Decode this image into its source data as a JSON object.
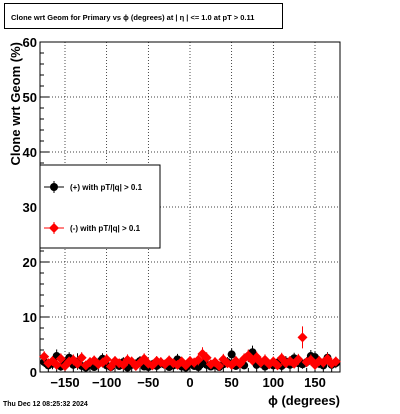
{
  "chart_data": {
    "type": "scatter",
    "title": "Clone wrt Geom for Primary vs ϕ (degrees) at | η | <= 1.0 at pT > 0.11",
    "xlabel": "ϕ (degrees)",
    "ylabel": "Clone wrt Geom (%)",
    "xlim": [
      -180,
      180
    ],
    "ylim": [
      0,
      60
    ],
    "x_ticks": [
      -150,
      -100,
      -50,
      0,
      50,
      100,
      150
    ],
    "x_tick_labels": [
      "−150",
      "−100",
      "−50",
      "0",
      "50",
      "100",
      "150"
    ],
    "y_ticks": [
      0,
      10,
      20,
      30,
      40,
      50,
      60
    ],
    "y_tick_labels": [
      "0",
      "10",
      "20",
      "30",
      "40",
      "50",
      "60"
    ],
    "grid": true,
    "legend_placement": "middle-left",
    "series": [
      {
        "name": "(+) with pT/|q| > 0.1",
        "color": "#000000",
        "marker": "circle",
        "points": [
          {
            "x": -175,
            "y": 1.8,
            "err": 0.9
          },
          {
            "x": -170,
            "y": 1.2,
            "err": 0.7
          },
          {
            "x": -165,
            "y": 1.5,
            "err": 1.0
          },
          {
            "x": -160,
            "y": 2.9,
            "err": 1.2
          },
          {
            "x": -155,
            "y": 1.0,
            "err": 0.8
          },
          {
            "x": -150,
            "y": 1.6,
            "err": 0.9
          },
          {
            "x": -145,
            "y": 2.6,
            "err": 1.0
          },
          {
            "x": -140,
            "y": 1.3,
            "err": 0.8
          },
          {
            "x": -135,
            "y": 1.9,
            "err": 1.5
          },
          {
            "x": -130,
            "y": 1.1,
            "err": 0.7
          },
          {
            "x": -125,
            "y": 0.8,
            "err": 0.6
          },
          {
            "x": -120,
            "y": 1.4,
            "err": 0.8
          },
          {
            "x": -115,
            "y": 0.9,
            "err": 0.7
          },
          {
            "x": -110,
            "y": 1.7,
            "err": 0.9
          },
          {
            "x": -105,
            "y": 2.4,
            "err": 1.0
          },
          {
            "x": -100,
            "y": 1.2,
            "err": 0.7
          },
          {
            "x": -95,
            "y": 0.9,
            "err": 0.6
          },
          {
            "x": -90,
            "y": 1.6,
            "err": 0.8
          },
          {
            "x": -85,
            "y": 1.1,
            "err": 0.7
          },
          {
            "x": -80,
            "y": 1.8,
            "err": 0.9
          },
          {
            "x": -75,
            "y": 0.8,
            "err": 0.6
          },
          {
            "x": -70,
            "y": 1.3,
            "err": 0.8
          },
          {
            "x": -65,
            "y": 1.5,
            "err": 0.8
          },
          {
            "x": -60,
            "y": 2.0,
            "err": 0.9
          },
          {
            "x": -55,
            "y": 1.0,
            "err": 0.7
          },
          {
            "x": -50,
            "y": 0.9,
            "err": 0.6
          },
          {
            "x": -45,
            "y": 1.4,
            "err": 0.8
          },
          {
            "x": -40,
            "y": 1.1,
            "err": 0.7
          },
          {
            "x": -35,
            "y": 1.6,
            "err": 0.9
          },
          {
            "x": -30,
            "y": 1.3,
            "err": 0.8
          },
          {
            "x": -25,
            "y": 0.9,
            "err": 0.6
          },
          {
            "x": -20,
            "y": 1.2,
            "err": 0.7
          },
          {
            "x": -15,
            "y": 2.3,
            "err": 1.0
          },
          {
            "x": -10,
            "y": 1.0,
            "err": 0.7
          },
          {
            "x": -5,
            "y": 0.8,
            "err": 0.6
          },
          {
            "x": 0,
            "y": 1.5,
            "err": 0.8
          },
          {
            "x": 5,
            "y": 1.1,
            "err": 0.7
          },
          {
            "x": 10,
            "y": 0.9,
            "err": 0.6
          },
          {
            "x": 15,
            "y": 1.6,
            "err": 0.9
          },
          {
            "x": 20,
            "y": 1.3,
            "err": 0.8
          },
          {
            "x": 25,
            "y": 1.0,
            "err": 0.7
          },
          {
            "x": 30,
            "y": 1.2,
            "err": 0.7
          },
          {
            "x": 35,
            "y": 0.9,
            "err": 0.6
          },
          {
            "x": 40,
            "y": 1.4,
            "err": 0.8
          },
          {
            "x": 45,
            "y": 1.8,
            "err": 0.9
          },
          {
            "x": 50,
            "y": 3.2,
            "err": 1.1
          },
          {
            "x": 55,
            "y": 1.1,
            "err": 0.7
          },
          {
            "x": 60,
            "y": 1.5,
            "err": 0.8
          },
          {
            "x": 65,
            "y": 1.2,
            "err": 0.7
          },
          {
            "x": 70,
            "y": 2.9,
            "err": 1.1
          },
          {
            "x": 75,
            "y": 3.6,
            "err": 1.2
          },
          {
            "x": 80,
            "y": 1.3,
            "err": 0.8
          },
          {
            "x": 85,
            "y": 1.6,
            "err": 0.9
          },
          {
            "x": 90,
            "y": 1.0,
            "err": 0.7
          },
          {
            "x": 95,
            "y": 1.4,
            "err": 0.8
          },
          {
            "x": 100,
            "y": 1.2,
            "err": 0.7
          },
          {
            "x": 105,
            "y": 1.7,
            "err": 0.9
          },
          {
            "x": 110,
            "y": 1.1,
            "err": 0.7
          },
          {
            "x": 115,
            "y": 1.9,
            "err": 1.0
          },
          {
            "x": 120,
            "y": 1.3,
            "err": 0.8
          },
          {
            "x": 125,
            "y": 2.5,
            "err": 1.0
          },
          {
            "x": 130,
            "y": 1.6,
            "err": 0.9
          },
          {
            "x": 135,
            "y": 1.4,
            "err": 0.8
          },
          {
            "x": 140,
            "y": 1.8,
            "err": 0.9
          },
          {
            "x": 145,
            "y": 2.9,
            "err": 1.1
          },
          {
            "x": 150,
            "y": 2.7,
            "err": 1.0
          },
          {
            "x": 155,
            "y": 1.5,
            "err": 0.8
          },
          {
            "x": 160,
            "y": 1.2,
            "err": 0.7
          },
          {
            "x": 165,
            "y": 2.6,
            "err": 1.0
          },
          {
            "x": 170,
            "y": 1.3,
            "err": 0.8
          },
          {
            "x": 175,
            "y": 1.6,
            "err": 0.9
          }
        ]
      },
      {
        "name": "(-) with pT/|q| > 0.1",
        "color": "#ff0000",
        "marker": "diamond",
        "points": [
          {
            "x": -175,
            "y": 2.8,
            "err": 1.0
          },
          {
            "x": -170,
            "y": 1.6,
            "err": 0.8
          },
          {
            "x": -165,
            "y": 2.0,
            "err": 0.9
          },
          {
            "x": -160,
            "y": 1.3,
            "err": 0.8
          },
          {
            "x": -155,
            "y": 2.4,
            "err": 1.0
          },
          {
            "x": -150,
            "y": 1.1,
            "err": 0.7
          },
          {
            "x": -145,
            "y": 1.9,
            "err": 0.9
          },
          {
            "x": -140,
            "y": 2.2,
            "err": 1.0
          },
          {
            "x": -135,
            "y": 1.5,
            "err": 0.8
          },
          {
            "x": -130,
            "y": 2.6,
            "err": 1.0
          },
          {
            "x": -125,
            "y": 1.2,
            "err": 0.7
          },
          {
            "x": -120,
            "y": 1.8,
            "err": 0.9
          },
          {
            "x": -115,
            "y": 2.1,
            "err": 0.9
          },
          {
            "x": -110,
            "y": 1.4,
            "err": 0.8
          },
          {
            "x": -105,
            "y": 1.7,
            "err": 0.9
          },
          {
            "x": -100,
            "y": 2.3,
            "err": 1.0
          },
          {
            "x": -95,
            "y": 1.0,
            "err": 0.7
          },
          {
            "x": -90,
            "y": 2.0,
            "err": 0.9
          },
          {
            "x": -85,
            "y": 1.6,
            "err": 0.8
          },
          {
            "x": -80,
            "y": 1.3,
            "err": 0.8
          },
          {
            "x": -75,
            "y": 2.2,
            "err": 1.0
          },
          {
            "x": -70,
            "y": 1.9,
            "err": 0.9
          },
          {
            "x": -65,
            "y": 1.1,
            "err": 0.7
          },
          {
            "x": -60,
            "y": 1.7,
            "err": 0.9
          },
          {
            "x": -55,
            "y": 2.4,
            "err": 1.0
          },
          {
            "x": -50,
            "y": 1.5,
            "err": 0.8
          },
          {
            "x": -45,
            "y": 1.2,
            "err": 0.7
          },
          {
            "x": -40,
            "y": 2.0,
            "err": 0.9
          },
          {
            "x": -35,
            "y": 1.8,
            "err": 0.9
          },
          {
            "x": -30,
            "y": 1.4,
            "err": 0.8
          },
          {
            "x": -25,
            "y": 2.1,
            "err": 0.9
          },
          {
            "x": -20,
            "y": 1.6,
            "err": 0.8
          },
          {
            "x": -15,
            "y": 1.3,
            "err": 0.8
          },
          {
            "x": -10,
            "y": 1.9,
            "err": 0.9
          },
          {
            "x": -5,
            "y": 1.2,
            "err": 0.7
          },
          {
            "x": 0,
            "y": 2.0,
            "err": 0.9
          },
          {
            "x": 5,
            "y": 1.7,
            "err": 0.9
          },
          {
            "x": 10,
            "y": 2.2,
            "err": 1.0
          },
          {
            "x": 15,
            "y": 3.3,
            "err": 1.2
          },
          {
            "x": 20,
            "y": 2.6,
            "err": 1.0
          },
          {
            "x": 25,
            "y": 1.4,
            "err": 0.8
          },
          {
            "x": 30,
            "y": 1.8,
            "err": 0.9
          },
          {
            "x": 35,
            "y": 1.1,
            "err": 0.7
          },
          {
            "x": 40,
            "y": 2.3,
            "err": 1.0
          },
          {
            "x": 45,
            "y": 1.6,
            "err": 0.8
          },
          {
            "x": 50,
            "y": 1.3,
            "err": 0.8
          },
          {
            "x": 55,
            "y": 2.0,
            "err": 0.9
          },
          {
            "x": 60,
            "y": 1.5,
            "err": 0.8
          },
          {
            "x": 65,
            "y": 2.4,
            "err": 1.0
          },
          {
            "x": 70,
            "y": 3.0,
            "err": 1.1
          },
          {
            "x": 75,
            "y": 2.1,
            "err": 0.9
          },
          {
            "x": 80,
            "y": 2.7,
            "err": 1.0
          },
          {
            "x": 85,
            "y": 1.7,
            "err": 0.9
          },
          {
            "x": 90,
            "y": 2.2,
            "err": 1.0
          },
          {
            "x": 95,
            "y": 1.4,
            "err": 0.8
          },
          {
            "x": 100,
            "y": 1.9,
            "err": 0.9
          },
          {
            "x": 105,
            "y": 1.2,
            "err": 0.7
          },
          {
            "x": 110,
            "y": 2.5,
            "err": 1.0
          },
          {
            "x": 115,
            "y": 1.6,
            "err": 0.8
          },
          {
            "x": 120,
            "y": 2.0,
            "err": 0.9
          },
          {
            "x": 125,
            "y": 1.5,
            "err": 0.8
          },
          {
            "x": 130,
            "y": 2.3,
            "err": 1.0
          },
          {
            "x": 135,
            "y": 6.3,
            "err": 2.0
          },
          {
            "x": 140,
            "y": 1.8,
            "err": 0.9
          },
          {
            "x": 145,
            "y": 2.2,
            "err": 1.0
          },
          {
            "x": 150,
            "y": 1.3,
            "err": 0.8
          },
          {
            "x": 155,
            "y": 2.0,
            "err": 0.9
          },
          {
            "x": 160,
            "y": 1.7,
            "err": 0.9
          },
          {
            "x": 165,
            "y": 2.4,
            "err": 1.0
          },
          {
            "x": 170,
            "y": 1.5,
            "err": 0.8
          },
          {
            "x": 175,
            "y": 1.9,
            "err": 0.9
          }
        ]
      }
    ]
  },
  "footer": {
    "timestamp": "Thu Dec 12 08:25:32 2024"
  }
}
